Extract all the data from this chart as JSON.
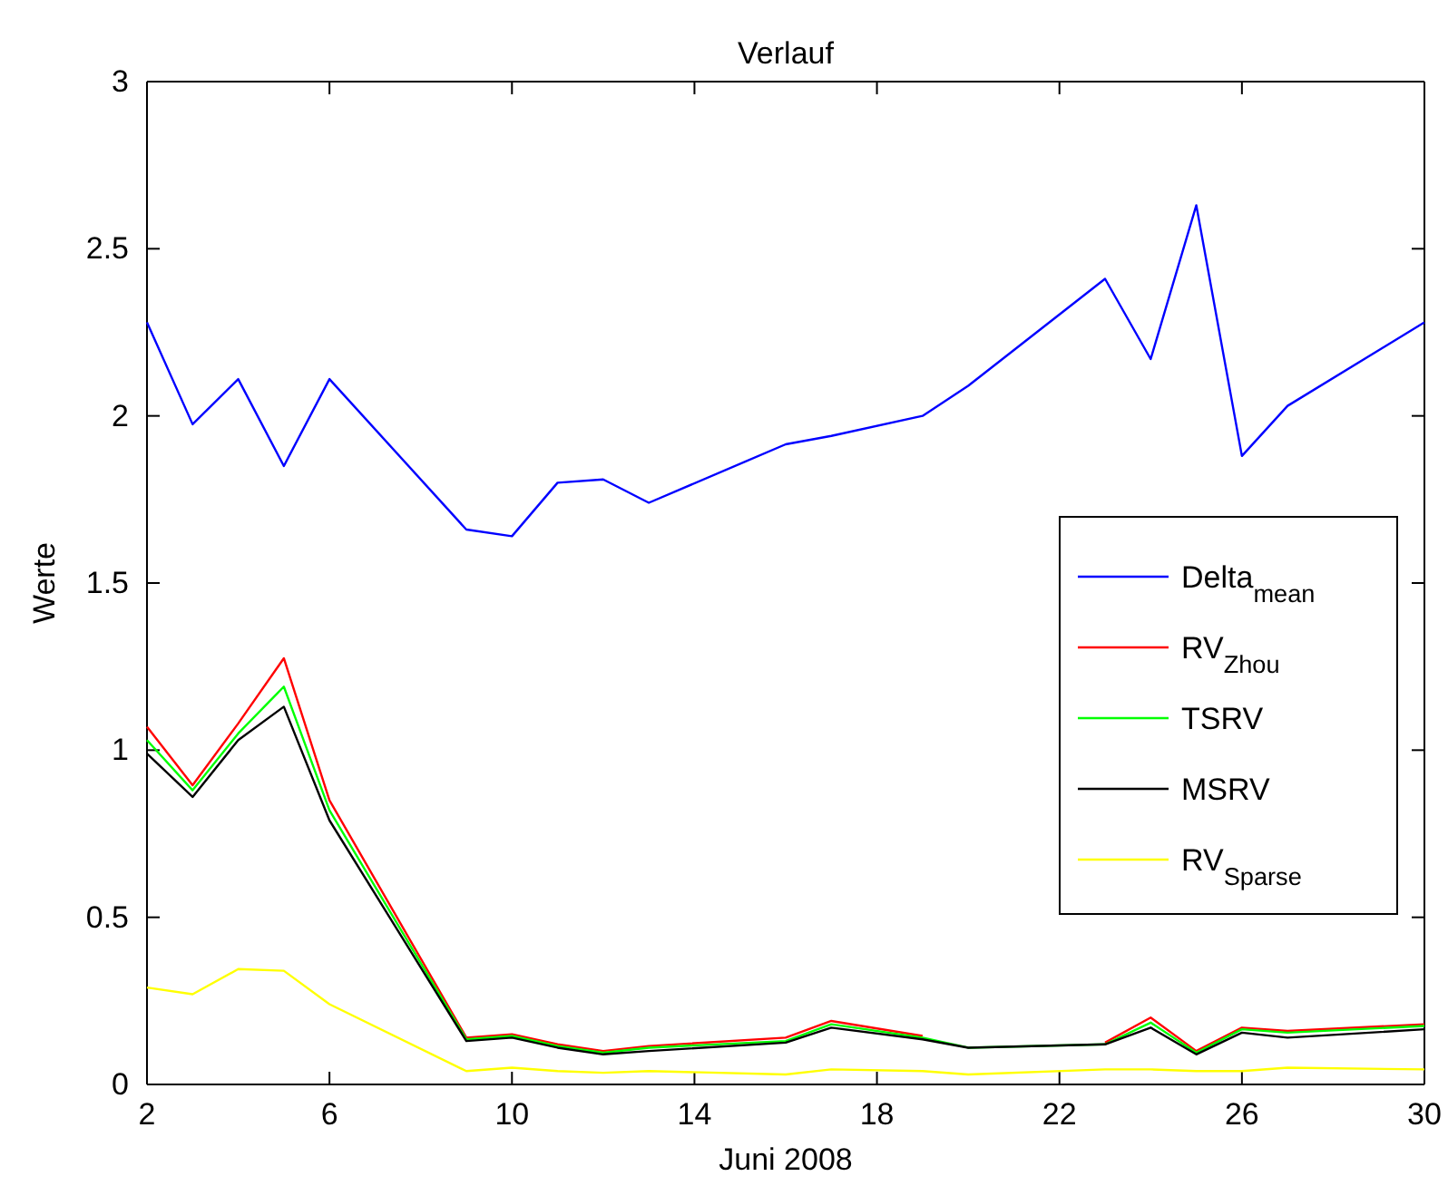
{
  "chart_data": {
    "type": "line",
    "title": "Verlauf",
    "xlabel": "Juni 2008",
    "ylabel": "Werte",
    "x": [
      2,
      3,
      4,
      5,
      6,
      9,
      10,
      11,
      12,
      13,
      16,
      17,
      19,
      20,
      23,
      24,
      25,
      26,
      27,
      30
    ],
    "series": [
      {
        "name": "Delta$_{mean}$",
        "color": "#0000ff",
        "values": [
          2.28,
          1.975,
          2.11,
          1.85,
          2.11,
          1.66,
          1.64,
          1.8,
          1.81,
          1.74,
          1.915,
          1.94,
          2.0,
          2.09,
          2.41,
          2.17,
          2.63,
          1.88,
          2.03,
          2.28
        ]
      },
      {
        "name": "RV$_{Zhou}$",
        "color": "#ff0000",
        "values": [
          1.07,
          0.895,
          1.08,
          1.275,
          0.85,
          0.14,
          0.15,
          0.12,
          0.1,
          0.115,
          0.14,
          0.19,
          0.145,
          null,
          0.125,
          0.2,
          0.1,
          0.17,
          0.16,
          0.18
        ]
      },
      {
        "name": "TSRV",
        "color": "#00ff00",
        "values": [
          1.03,
          0.88,
          1.05,
          1.19,
          0.82,
          0.135,
          0.145,
          0.115,
          0.095,
          0.11,
          0.13,
          0.18,
          0.14,
          0.11,
          0.12,
          0.185,
          0.095,
          0.165,
          0.155,
          0.175
        ]
      },
      {
        "name": "MSRV",
        "color": "#000000",
        "values": [
          0.99,
          0.86,
          1.03,
          1.13,
          0.79,
          0.13,
          0.14,
          0.11,
          0.09,
          0.1,
          0.125,
          0.17,
          0.135,
          0.11,
          0.12,
          0.17,
          0.09,
          0.155,
          0.14,
          0.165
        ]
      },
      {
        "name": "RV$_{Sparse}$",
        "color": "#ffff00",
        "values": [
          0.29,
          0.27,
          0.345,
          0.34,
          0.24,
          0.04,
          0.05,
          0.04,
          0.035,
          0.04,
          0.03,
          0.045,
          0.04,
          0.03,
          0.045,
          0.045,
          0.04,
          0.04,
          0.05,
          0.045
        ]
      }
    ],
    "xlim": [
      2,
      30
    ],
    "xticks": [
      2,
      6,
      10,
      14,
      18,
      22,
      26,
      30
    ],
    "ylim": [
      0,
      3
    ],
    "yticks": [
      0,
      0.5,
      1,
      1.5,
      2,
      2.5,
      3
    ],
    "legend": "right",
    "marker": "none",
    "line_style": "solid"
  }
}
